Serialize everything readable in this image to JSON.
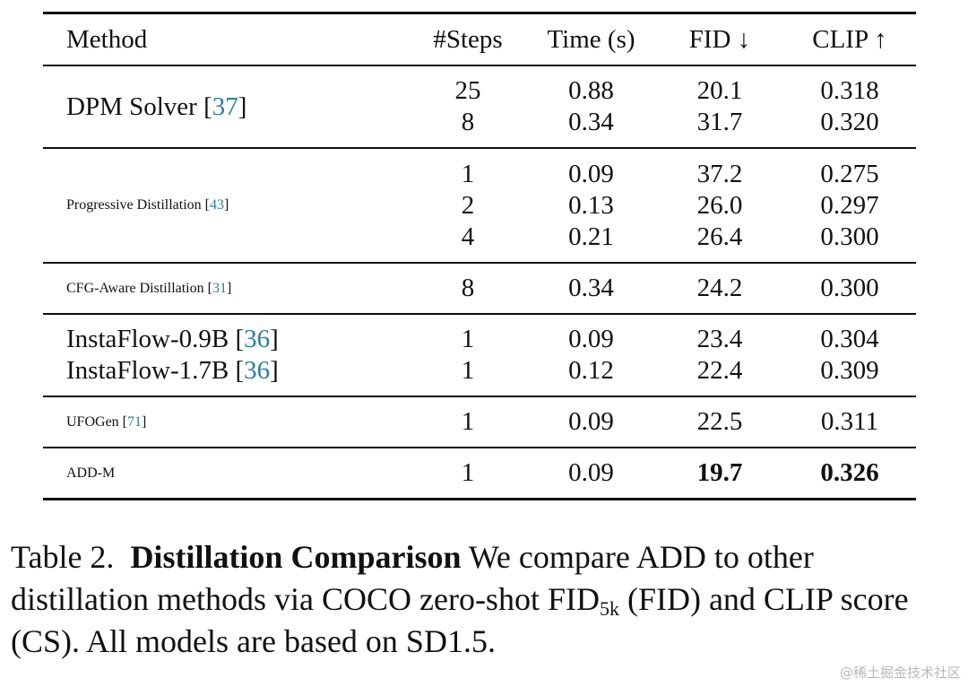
{
  "table": {
    "headers": {
      "method": "Method",
      "steps": "#Steps",
      "time": "Time (s)",
      "fid": "FID ↓",
      "clip": "CLIP ↑"
    },
    "groups": [
      {
        "method": "DPM Solver",
        "cite": "37",
        "rows": [
          {
            "steps": "25",
            "time": "0.88",
            "fid": "20.1",
            "clip": "0.318"
          },
          {
            "steps": "8",
            "time": "0.34",
            "fid": "31.7",
            "clip": "0.320"
          }
        ]
      },
      {
        "method": "Progressive Distillation",
        "cite": "43",
        "rows": [
          {
            "steps": "1",
            "time": "0.09",
            "fid": "37.2",
            "clip": "0.275"
          },
          {
            "steps": "2",
            "time": "0.13",
            "fid": "26.0",
            "clip": "0.297"
          },
          {
            "steps": "4",
            "time": "0.21",
            "fid": "26.4",
            "clip": "0.300"
          }
        ]
      },
      {
        "method": "CFG-Aware Distillation",
        "cite": "31",
        "rows": [
          {
            "steps": "8",
            "time": "0.34",
            "fid": "24.2",
            "clip": "0.300"
          }
        ]
      },
      {
        "methods": [
          {
            "method": "InstaFlow-0.9B",
            "cite": "36",
            "steps": "1",
            "time": "0.09",
            "fid": "23.4",
            "clip": "0.304"
          },
          {
            "method": "InstaFlow-1.7B",
            "cite": "36",
            "steps": "1",
            "time": "0.12",
            "fid": "22.4",
            "clip": "0.309"
          }
        ]
      },
      {
        "method": "UFOGen",
        "cite": "71",
        "rows": [
          {
            "steps": "1",
            "time": "0.09",
            "fid": "22.5",
            "clip": "0.311"
          }
        ]
      },
      {
        "method": "ADD-M",
        "rows": [
          {
            "steps": "1",
            "time": "0.09",
            "fid": "19.7",
            "clip": "0.326"
          }
        ]
      }
    ]
  },
  "caption": {
    "label": "Table 2.",
    "title": "Distillation Comparison",
    "text_1": " We compare ADD to other distillation methods via COCO zero-shot FID",
    "subscript": "5k",
    "text_2": " (FID) and CLIP score (CS). All models are based on SD1.5."
  },
  "watermark": "@稀土掘金技术社区",
  "colors": {
    "citation": "#2e7d9c",
    "text": "#111111"
  }
}
